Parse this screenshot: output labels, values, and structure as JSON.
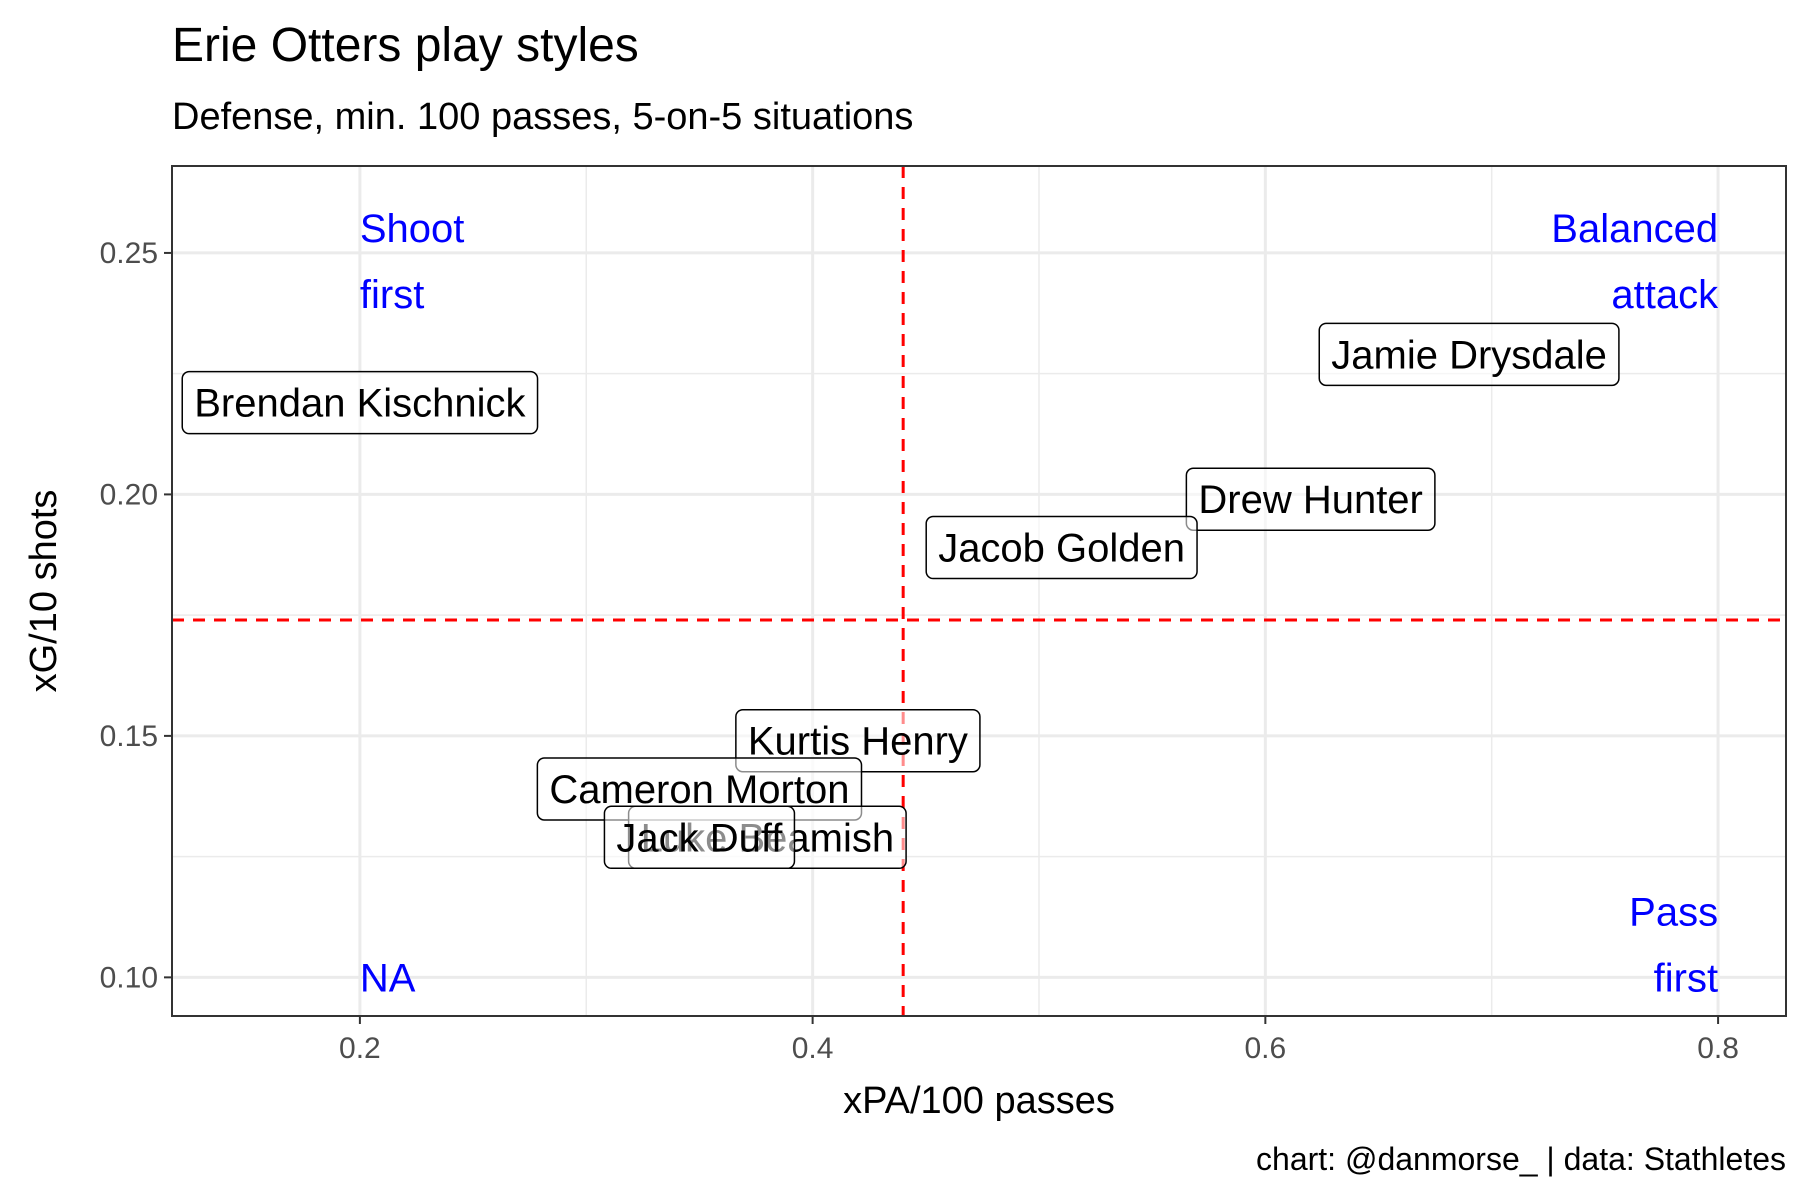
{
  "title": "Erie Otters play styles",
  "subtitle": "Defense, min. 100 passes, 5-on-5 situations",
  "caption": "chart: @danmorse_ | data: Stathletes",
  "colors": {
    "reference_line": "#ff0000",
    "quadrant_label": "#0000ff",
    "grid": "#ebebeb",
    "panel_border": "#333333"
  },
  "chart_data": {
    "type": "scatter",
    "title": "Erie Otters play styles",
    "subtitle": "Defense, min. 100 passes, 5-on-5 situations",
    "xlabel": "xPA/100 passes",
    "ylabel": "xG/10 shots",
    "xlim": [
      0.117,
      0.83
    ],
    "ylim": [
      0.092,
      0.268
    ],
    "xticks": [
      0.2,
      0.4,
      0.6,
      0.8
    ],
    "xtick_labels": [
      "0.2",
      "0.4",
      "0.6",
      "0.8"
    ],
    "yticks": [
      0.1,
      0.15,
      0.2,
      0.25
    ],
    "ytick_labels": [
      "0.10",
      "0.15",
      "0.20",
      "0.25"
    ],
    "grid": true,
    "reference_lines": {
      "x": 0.44,
      "y": 0.174,
      "style": "dashed"
    },
    "points": [
      {
        "label": "Jamie Drysdale",
        "x": 0.69,
        "y": 0.229
      },
      {
        "label": "Brendan Kischnick",
        "x": 0.2,
        "y": 0.219
      },
      {
        "label": "Drew Hunter",
        "x": 0.62,
        "y": 0.199
      },
      {
        "label": "Jacob Golden",
        "x": 0.51,
        "y": 0.189
      },
      {
        "label": "Kurtis Henry",
        "x": 0.42,
        "y": 0.149
      },
      {
        "label": "Cameron Morton",
        "x": 0.35,
        "y": 0.139
      },
      {
        "label": "Luke Beamish",
        "x": 0.38,
        "y": 0.129
      },
      {
        "label": "Jack Duff",
        "x": 0.35,
        "y": 0.129
      }
    ],
    "quadrant_labels": [
      {
        "line1": "Shoot",
        "line2": "first",
        "position": "top-left"
      },
      {
        "line1": "Balanced",
        "line2": "attack",
        "position": "top-right"
      },
      {
        "line1": "Pass",
        "line2": "first",
        "position": "bottom-right"
      },
      {
        "line1": "NA",
        "line2": "",
        "position": "bottom-left"
      }
    ]
  }
}
